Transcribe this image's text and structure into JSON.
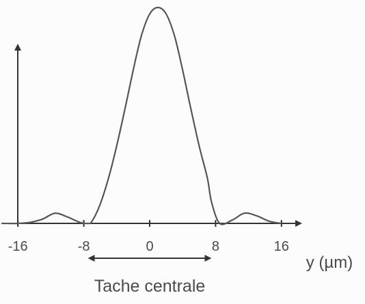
{
  "chart_data": {
    "type": "line",
    "title": "",
    "xlabel": "y (µm)",
    "ylabel": "",
    "x_ticks": [
      -16,
      -8,
      0,
      8,
      16
    ],
    "x_tick_labels": [
      "-16",
      "-8",
      "0",
      "8",
      "16"
    ],
    "xlim": [
      -18,
      20
    ],
    "ylim": [
      0,
      1
    ],
    "grid": false,
    "legend": "none",
    "series": [
      {
        "x": [
          -18,
          -16,
          -14.5,
          -13,
          -11.5,
          -10,
          -8.5,
          -7.5,
          -7,
          -6,
          -5,
          -4,
          -3,
          -2,
          -1,
          0,
          1,
          2,
          3,
          4,
          5,
          6,
          7,
          7.5,
          8.5,
          10,
          11.5,
          13,
          14.5,
          16
        ],
        "y": [
          0,
          0,
          0.005,
          0.02,
          0.047,
          0.03,
          0.005,
          0,
          0.01,
          0.09,
          0.21,
          0.36,
          0.53,
          0.71,
          0.87,
          0.97,
          1.0,
          0.97,
          0.87,
          0.71,
          0.53,
          0.36,
          0.21,
          0.1,
          0.0,
          0.015,
          0.047,
          0.035,
          0.01,
          0
        ]
      }
    ],
    "annotations": [
      {
        "text": "Tache centrale",
        "from_x": -8,
        "to_x": 8,
        "style": "double-arrow"
      }
    ]
  },
  "colors": {
    "curve": "#555555",
    "axis": "#333333",
    "text": "#4a4a4a",
    "background": "#fcfcfc"
  }
}
